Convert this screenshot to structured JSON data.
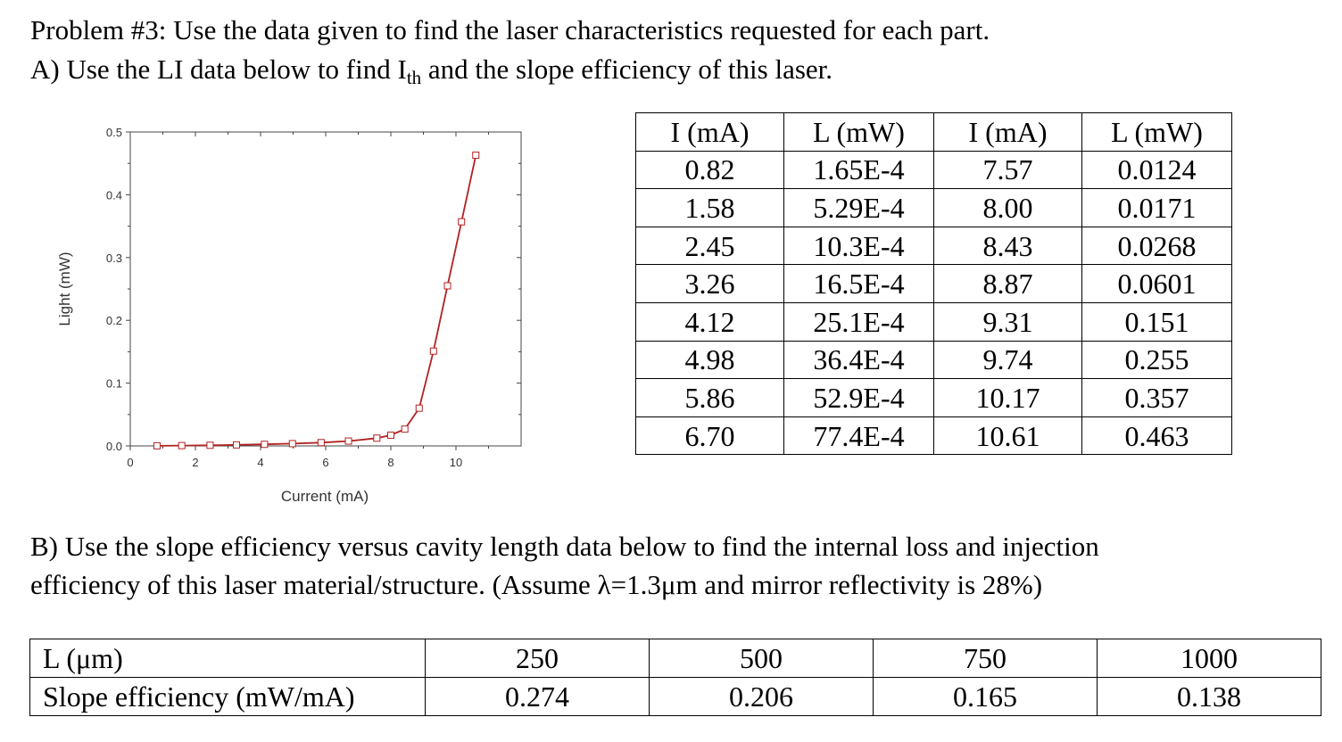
{
  "problem": {
    "title": "Problem #3:  Use the data given to find the laser characteristics requested for each part.",
    "part_a": {
      "prefix": "A) Use the LI data below to find I",
      "subscript": "th",
      "suffix": " and the slope efficiency of this laser."
    },
    "part_b": {
      "line1": "B)  Use the slope efficiency versus cavity length data below to find the internal loss and injection",
      "line2": "efficiency of this laser material/structure. (Assume λ=1.3μm and mirror reflectivity is 28%)"
    }
  },
  "li_table": {
    "headers": [
      "I (mA)",
      "L (mW)",
      "I (mA)",
      "L (mW)"
    ],
    "rows": [
      [
        "0.82",
        "1.65E-4",
        "7.57",
        "0.0124"
      ],
      [
        "1.58",
        "5.29E-4",
        "8.00",
        "0.0171"
      ],
      [
        "2.45",
        "10.3E-4",
        "8.43",
        "0.0268"
      ],
      [
        "3.26",
        "16.5E-4",
        "8.87",
        "0.0601"
      ],
      [
        "4.12",
        "25.1E-4",
        "9.31",
        "0.151"
      ],
      [
        "4.98",
        "36.4E-4",
        "9.74",
        "0.255"
      ],
      [
        "5.86",
        "52.9E-4",
        "10.17",
        "0.357"
      ],
      [
        "6.70",
        "77.4E-4",
        "10.61",
        "0.463"
      ]
    ]
  },
  "slope_table": {
    "row_labels": [
      "L (μm)",
      "Slope efficiency (mW/mA)"
    ],
    "lengths": [
      "250",
      "500",
      "750",
      "1000"
    ],
    "efficiencies": [
      "0.274",
      "0.206",
      "0.165",
      "0.138"
    ]
  },
  "chart_data": {
    "type": "line",
    "xlabel": "Current (mA)",
    "ylabel": "Light (mW)",
    "xlim": [
      0,
      12
    ],
    "ylim": [
      0,
      0.5
    ],
    "xticks": [
      "0",
      "2",
      "4",
      "6",
      "8",
      "10"
    ],
    "yticks": [
      "0.0",
      "0.1",
      "0.2",
      "0.3",
      "0.4",
      "0.5"
    ],
    "grid": false,
    "line_color": "#b22222",
    "marker": "open-square",
    "series": [
      {
        "x": [
          0.82,
          1.58,
          2.45,
          3.26,
          4.12,
          4.98,
          5.86,
          6.7,
          7.57,
          8.0,
          8.43,
          8.87,
          9.31,
          9.74,
          10.17,
          10.61
        ],
        "y": [
          0.000165,
          0.000529,
          0.00103,
          0.00165,
          0.00251,
          0.00364,
          0.00529,
          0.00774,
          0.0124,
          0.0171,
          0.0268,
          0.0601,
          0.151,
          0.255,
          0.357,
          0.463
        ]
      }
    ]
  }
}
